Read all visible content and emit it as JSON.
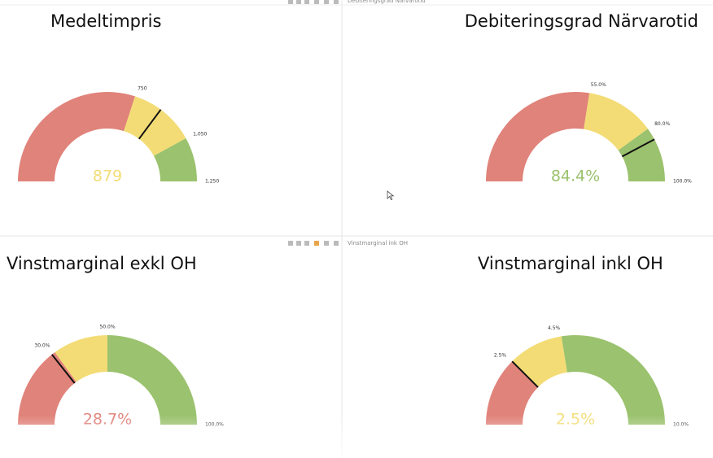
{
  "chart_data": [
    {
      "type": "gauge",
      "title": "Medeltimpris",
      "value": 879,
      "value_label": "879",
      "ylim": [
        0,
        1250
      ],
      "yticks": [
        {
          "value": 750,
          "label": "750"
        },
        {
          "value": 1050,
          "label": "1,050"
        },
        {
          "value": 1250,
          "label": "1,250"
        }
      ],
      "colors": [
        "#e0837a",
        "#f3dc75",
        "#9bc26e"
      ]
    },
    {
      "type": "gauge",
      "title": "Debiteringsgrad Närvarotid",
      "caption": "Debiteringsgrad Närvarotid",
      "value": 84.4,
      "value_label": "84.4%",
      "ylim": [
        0,
        100
      ],
      "yticks": [
        {
          "value": 55,
          "label": "55.0%"
        },
        {
          "value": 80,
          "label": "80.0%"
        },
        {
          "value": 100,
          "label": "100.0%"
        }
      ],
      "colors": [
        "#e0837a",
        "#f3dc75",
        "#9bc26e"
      ]
    },
    {
      "type": "gauge",
      "title": "Vinstmarginal exkl OH",
      "value": 28.7,
      "value_label": "28.7%",
      "ylim": [
        0,
        100
      ],
      "yticks": [
        {
          "value": 30,
          "label": "30.0%"
        },
        {
          "value": 50,
          "label": "50.0%"
        },
        {
          "value": 100,
          "label": "100.0%"
        }
      ],
      "colors": [
        "#e0837a",
        "#f3dc75",
        "#9bc26e"
      ]
    },
    {
      "type": "gauge",
      "title": "Vinstmarginal inkl OH",
      "caption": "Vinstmarginal ink OH",
      "value": 2.5,
      "value_label": "2.5%",
      "ylim": [
        0,
        10
      ],
      "yticks": [
        {
          "value": 2.5,
          "label": "2.5%"
        },
        {
          "value": 4.5,
          "label": "4.5%"
        },
        {
          "value": 10,
          "label": "10.0%"
        }
      ],
      "colors": [
        "#e0837a",
        "#f3dc75",
        "#9bc26e"
      ]
    }
  ]
}
